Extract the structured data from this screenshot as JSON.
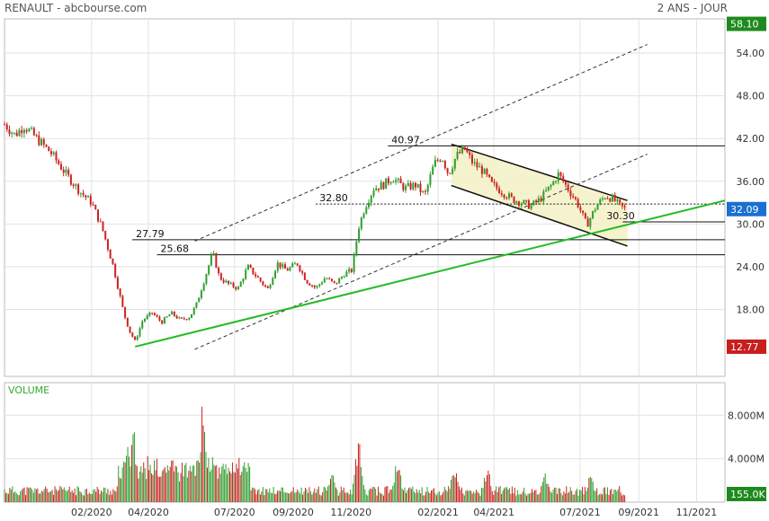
{
  "header": {
    "title": "RENAULT - abcbourse.com",
    "period": "2 ANS - JOUR"
  },
  "colors": {
    "up": "#2e9e2e",
    "down": "#cc2222",
    "trend": "#22bb22",
    "badge_green": "#1e8a1e",
    "badge_blue": "#1a6fd0",
    "badge_red": "#c81e1e",
    "channel_fill": "#f4f2c8"
  },
  "chart_data": {
    "type": "candlestick",
    "title": "",
    "y_axis": {
      "ticks": [
        "54.00",
        "48.00",
        "42.00",
        "36.00",
        "30.00",
        "24.00",
        "18.00"
      ],
      "tick_values": [
        54,
        48,
        42,
        36,
        30,
        24,
        18
      ],
      "range": [
        8.6,
        58.8
      ]
    },
    "x_axis": {
      "ticks": [
        "02/2020",
        "04/2020",
        "07/2020",
        "09/2020",
        "11/2020",
        "02/2021",
        "04/2021",
        "07/2021",
        "09/2021",
        "11/2021"
      ],
      "tick_dates": [
        "2020-02-01",
        "2020-04-01",
        "2020-07-01",
        "2020-09-01",
        "2020-11-01",
        "2021-02-01",
        "2021-04-01",
        "2021-07-01",
        "2021-09-01",
        "2021-11-01"
      ],
      "range": [
        "2019-11-01",
        "2021-12-01"
      ]
    },
    "badges": [
      {
        "label": "58.10",
        "value": 58.1,
        "color": "#1e8a1e"
      },
      {
        "label": "32.09",
        "value": 32.09,
        "color": "#1a6fd0"
      },
      {
        "label": "12.77",
        "value": 12.77,
        "color": "#c81e1e"
      }
    ],
    "levels": [
      {
        "label": "40.97",
        "value": 40.97,
        "start": "2020-12-10"
      },
      {
        "label": "32.80",
        "value": 32.8,
        "start": "2020-09-25"
      },
      {
        "label": "27.79",
        "value": 27.79,
        "start": "2020-03-15"
      },
      {
        "label": "25.68",
        "value": 25.68,
        "start": "2020-04-10"
      },
      {
        "label": "30.30",
        "value": 30.3,
        "start": "2021-08-15"
      }
    ],
    "trendlines": [
      {
        "kind": "support",
        "from": [
          "2020-03-18",
          12.77
        ],
        "to": [
          "2021-12-01",
          33.3
        ]
      }
    ],
    "parallel_channel": [
      {
        "from": [
          "2020-05-20",
          12.4
        ],
        "to": [
          "2021-09-10",
          39.8
        ]
      },
      {
        "from": [
          "2020-05-20",
          27.6
        ],
        "to": [
          "2021-09-10",
          55.2
        ]
      }
    ],
    "down_channel": {
      "upper": [
        [
          "2021-02-15",
          41.2
        ],
        [
          "2021-08-20",
          33.3
        ]
      ],
      "lower": [
        [
          "2021-02-15",
          35.4
        ],
        [
          "2021-08-20",
          26.9
        ]
      ]
    },
    "price_path": [
      [
        "2019-11-01",
        44.0
      ],
      [
        "2019-11-12",
        42.5
      ],
      [
        "2019-11-22",
        43.8
      ],
      [
        "2019-12-05",
        42.0
      ],
      [
        "2019-12-20",
        40.0
      ],
      [
        "2020-01-05",
        37.0
      ],
      [
        "2020-01-20",
        34.5
      ],
      [
        "2020-02-01",
        33.0
      ],
      [
        "2020-02-12",
        29.5
      ],
      [
        "2020-02-24",
        24.0
      ],
      [
        "2020-03-06",
        17.5
      ],
      [
        "2020-03-12",
        15.0
      ],
      [
        "2020-03-18",
        13.5
      ],
      [
        "2020-03-26",
        16.5
      ],
      [
        "2020-04-05",
        17.5
      ],
      [
        "2020-04-15",
        16.2
      ],
      [
        "2020-04-25",
        17.5
      ],
      [
        "2020-05-05",
        16.5
      ],
      [
        "2020-05-15",
        17.0
      ],
      [
        "2020-05-22",
        18.8
      ],
      [
        "2020-06-01",
        23.0
      ],
      [
        "2020-06-08",
        26.0
      ],
      [
        "2020-06-15",
        22.5
      ],
      [
        "2020-06-25",
        21.5
      ],
      [
        "2020-07-05",
        21.0
      ],
      [
        "2020-07-15",
        24.0
      ],
      [
        "2020-07-25",
        22.5
      ],
      [
        "2020-08-05",
        20.8
      ],
      [
        "2020-08-15",
        24.5
      ],
      [
        "2020-08-25",
        23.5
      ],
      [
        "2020-09-05",
        24.5
      ],
      [
        "2020-09-15",
        22.0
      ],
      [
        "2020-09-25",
        21.0
      ],
      [
        "2020-10-05",
        22.5
      ],
      [
        "2020-10-15",
        21.5
      ],
      [
        "2020-10-25",
        23.0
      ],
      [
        "2020-11-02",
        23.5
      ],
      [
        "2020-11-09",
        29.5
      ],
      [
        "2020-11-16",
        32.5
      ],
      [
        "2020-11-25",
        35.0
      ],
      [
        "2020-12-05",
        35.5
      ],
      [
        "2020-12-15",
        36.5
      ],
      [
        "2020-12-28",
        35.0
      ],
      [
        "2021-01-08",
        35.5
      ],
      [
        "2021-01-18",
        34.0
      ],
      [
        "2021-01-28",
        38.5
      ],
      [
        "2021-02-05",
        39.5
      ],
      [
        "2021-02-12",
        37.0
      ],
      [
        "2021-02-20",
        39.5
      ],
      [
        "2021-03-01",
        40.5
      ],
      [
        "2021-03-10",
        38.5
      ],
      [
        "2021-03-20",
        37.5
      ],
      [
        "2021-03-30",
        35.5
      ],
      [
        "2021-04-10",
        34.5
      ],
      [
        "2021-04-20",
        33.5
      ],
      [
        "2021-05-01",
        33.0
      ],
      [
        "2021-05-10",
        32.5
      ],
      [
        "2021-05-20",
        33.5
      ],
      [
        "2021-06-01",
        35.5
      ],
      [
        "2021-06-08",
        37.0
      ],
      [
        "2021-06-18",
        35.0
      ],
      [
        "2021-06-28",
        33.0
      ],
      [
        "2021-07-08",
        29.8
      ],
      [
        "2021-07-18",
        32.5
      ],
      [
        "2021-07-28",
        34.0
      ],
      [
        "2021-08-05",
        33.5
      ],
      [
        "2021-08-12",
        32.5
      ],
      [
        "2021-08-18",
        32.09
      ]
    ],
    "volume": {
      "title": "VOLUME",
      "y_ticks": [
        "8.000M",
        "4.000M"
      ],
      "y_tick_values": [
        8,
        4
      ],
      "range": [
        0,
        11
      ],
      "last_label": "155.0K",
      "last_color": "#1e8a1e",
      "spikes": [
        [
          "2020-03-10",
          7.2
        ],
        [
          "2020-03-16",
          8.2
        ],
        [
          "2020-05-28",
          9.8
        ],
        [
          "2020-06-08",
          5.1
        ],
        [
          "2020-10-12",
          4.2
        ],
        [
          "2020-11-09",
          6.6
        ],
        [
          "2020-12-20",
          4.5
        ],
        [
          "2021-02-18",
          4.1
        ],
        [
          "2021-03-25",
          3.8
        ],
        [
          "2021-05-25",
          3.2
        ],
        [
          "2021-07-12",
          2.9
        ]
      ]
    }
  }
}
